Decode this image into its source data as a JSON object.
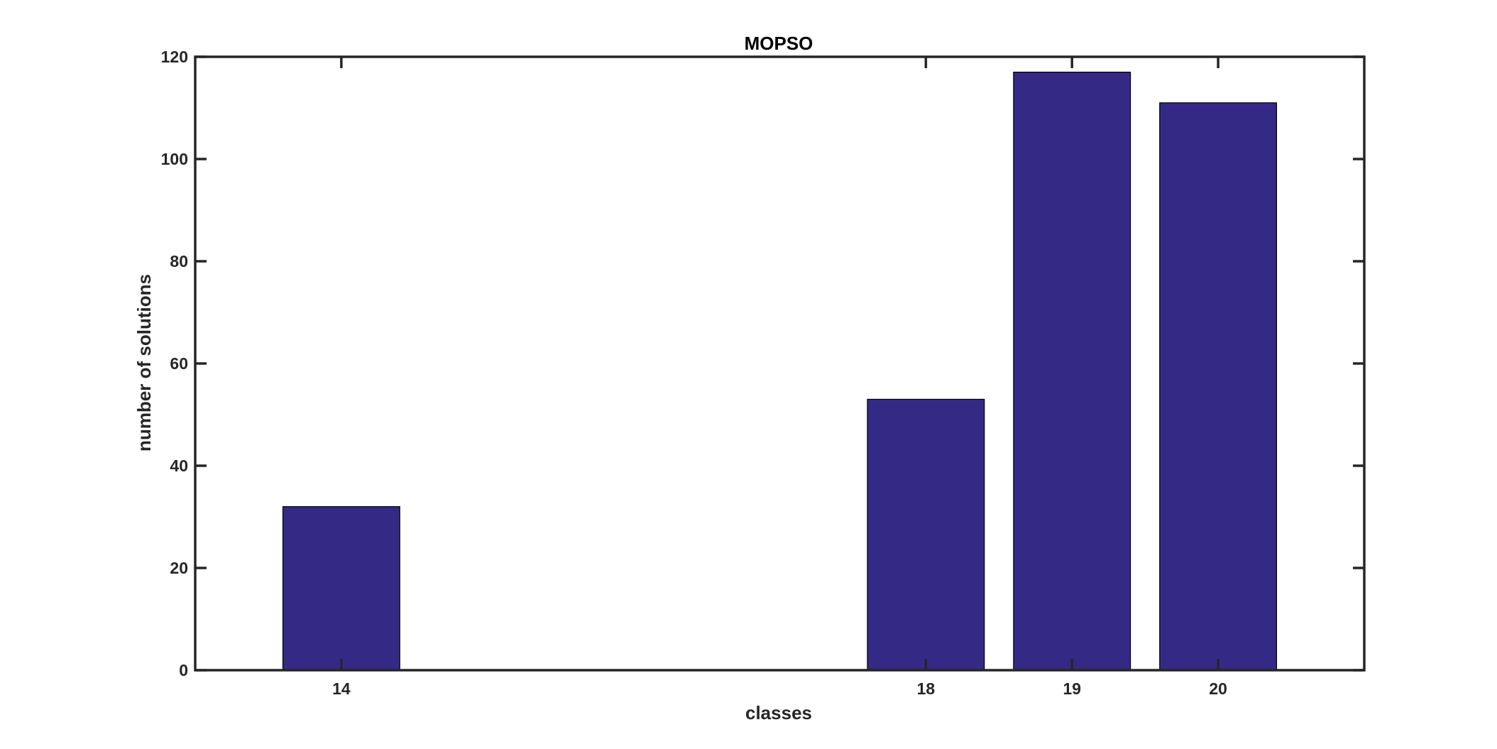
{
  "chart_data": {
    "type": "bar",
    "title": "MOPSO",
    "xlabel": "classes",
    "ylabel": "number of solutions",
    "categories": [
      "14",
      "18",
      "19",
      "20"
    ],
    "x": [
      14,
      18,
      19,
      20
    ],
    "values": [
      32,
      53,
      117,
      111
    ],
    "xlim": [
      13,
      21
    ],
    "ylim": [
      0,
      120
    ],
    "yticks": [
      0,
      20,
      40,
      60,
      80,
      100,
      120
    ],
    "bar_width": 0.8,
    "grid": false,
    "bar_color": "#342a85",
    "axis_color": "#262626"
  }
}
